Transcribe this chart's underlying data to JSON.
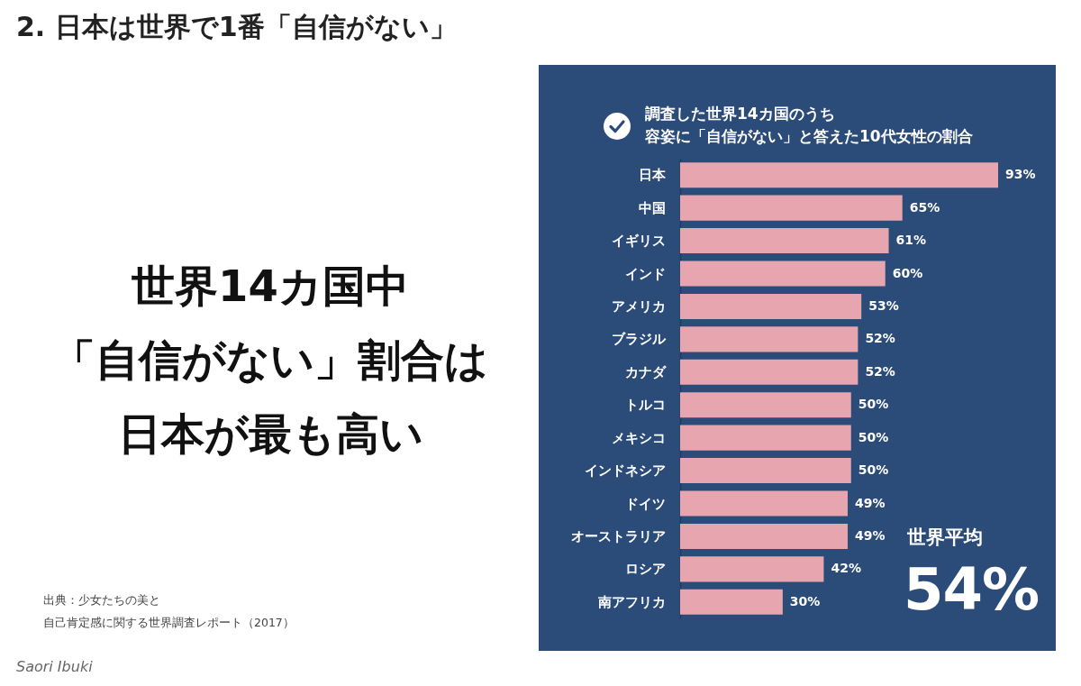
{
  "chart_data": {
    "type": "bar",
    "orientation": "horizontal",
    "title": "2. 日本は世界で1番「自信がない」",
    "subtitle": "調査した世界14カ国のうち容姿に「自信がない」と答えた10代女性の割合",
    "categories": [
      "日本",
      "中国",
      "イギリス",
      "インド",
      "アメリカ",
      "ブラジル",
      "カナダ",
      "トルコ",
      "メキシコ",
      "インドネシア",
      "ドイツ",
      "オーストラリア",
      "ロシア",
      "南アフリカ"
    ],
    "values": [
      93,
      65,
      61,
      60,
      53,
      52,
      52,
      50,
      50,
      50,
      49,
      49,
      42,
      30
    ],
    "value_labels": [
      "93%",
      "65%",
      "61%",
      "60%",
      "53%",
      "52%",
      "52%",
      "50%",
      "50%",
      "50%",
      "49%",
      "49%",
      "42%",
      "30%"
    ],
    "color": "#e6a5af",
    "annotations": [
      "世界14カ国中「自信がない」割合は日本が最も高い",
      "出典：少女たちの美と自己肯定感に関する世界調査レポート（2017）",
      "世界平均",
      "54%",
      "Saori Ibuki"
    ]
  }
}
